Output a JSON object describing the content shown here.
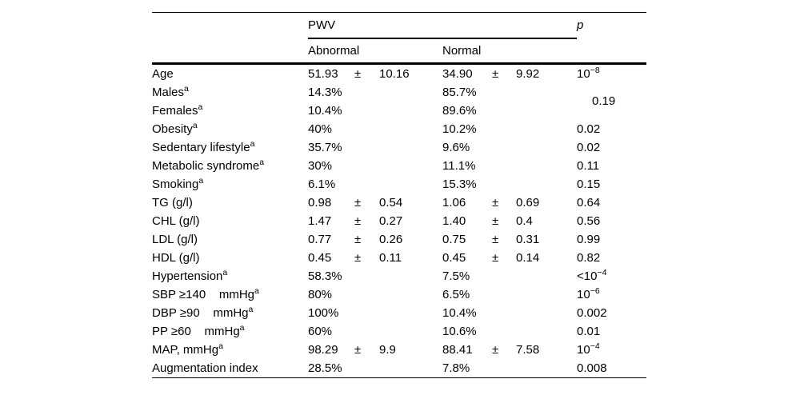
{
  "colors": {
    "background": "#ffffff",
    "text": "#000000",
    "rule": "#000000"
  },
  "table": {
    "header": {
      "group_title": "PWV",
      "subcol_abnormal": "Abnormal",
      "subcol_normal": "Normal",
      "p_label": "p"
    },
    "rows": [
      {
        "label": "Age",
        "abn": {
          "val": "51.93",
          "pm": "±",
          "sd": "10.16"
        },
        "norm": {
          "val": "34.90",
          "pm": "±",
          "sd": "9.92"
        },
        "p": {
          "text": "10",
          "sup": "−8"
        }
      },
      {
        "label": "Males",
        "sup": "a",
        "abn": {
          "val": "14.3%"
        },
        "norm": {
          "val": "85.7%"
        },
        "p": {
          "text": "0.19"
        },
        "p_rowspan": 2
      },
      {
        "label": "Females",
        "sup": "a",
        "abn": {
          "val": "10.4%"
        },
        "norm": {
          "val": "89.6%"
        },
        "p_skip": true
      },
      {
        "label": "Obesity",
        "sup": "a",
        "abn": {
          "val": "40%"
        },
        "norm": {
          "val": "10.2%"
        },
        "p": {
          "text": "0.02"
        }
      },
      {
        "label": "Sedentary lifestyle",
        "sup": "a",
        "abn": {
          "val": "35.7%"
        },
        "norm": {
          "val": "9.6%"
        },
        "p": {
          "text": "0.02"
        }
      },
      {
        "label": "Metabolic syndrome",
        "sup": "a",
        "abn": {
          "val": "30%"
        },
        "norm": {
          "val": "11.1%"
        },
        "p": {
          "text": "0.11"
        }
      },
      {
        "label": "Smoking",
        "sup": "a",
        "abn": {
          "val": "6.1%"
        },
        "norm": {
          "val": "15.3%"
        },
        "p": {
          "text": "0.15"
        }
      },
      {
        "label": "TG (g/l)",
        "abn": {
          "val": "0.98",
          "pm": "±",
          "sd": "0.54"
        },
        "norm": {
          "val": "1.06",
          "pm": "±",
          "sd": "0.69"
        },
        "p": {
          "text": "0.64"
        }
      },
      {
        "label": "CHL (g/l)",
        "abn": {
          "val": "1.47",
          "pm": "±",
          "sd": "0.27"
        },
        "norm": {
          "val": "1.40",
          "pm": "±",
          "sd": "0.4"
        },
        "p": {
          "text": "0.56"
        }
      },
      {
        "label": "LDL (g/l)",
        "abn": {
          "val": "0.77",
          "pm": "±",
          "sd": "0.26"
        },
        "norm": {
          "val": "0.75",
          "pm": "±",
          "sd": "0.31"
        },
        "p": {
          "text": "0.99"
        }
      },
      {
        "label": "HDL (g/l)",
        "abn": {
          "val": "0.45",
          "pm": "±",
          "sd": "0.11"
        },
        "norm": {
          "val": "0.45",
          "pm": "±",
          "sd": "0.14"
        },
        "p": {
          "text": "0.82"
        }
      },
      {
        "label": "Hypertension",
        "sup": "a",
        "abn": {
          "val": "58.3%"
        },
        "norm": {
          "val": "7.5%"
        },
        "p": {
          "text": "<10",
          "sup": "−4"
        }
      },
      {
        "label": "SBP ≥140    mmHg",
        "sup": "a",
        "abn": {
          "val": "80%"
        },
        "norm": {
          "val": "6.5%"
        },
        "p": {
          "text": "10",
          "sup": "−6"
        }
      },
      {
        "label": "DBP ≥90    mmHg",
        "sup": "a",
        "abn": {
          "val": "100%"
        },
        "norm": {
          "val": "10.4%"
        },
        "p": {
          "text": "0.002"
        }
      },
      {
        "label": "PP ≥60    mmHg",
        "sup": "a",
        "abn": {
          "val": "60%"
        },
        "norm": {
          "val": "10.6%"
        },
        "p": {
          "text": "0.01"
        }
      },
      {
        "label": "MAP, mmHg",
        "sup": "a",
        "abn": {
          "val": "98.29",
          "pm": "±",
          "sd": "9.9"
        },
        "norm": {
          "val": "88.41",
          "pm": "±",
          "sd": "7.58"
        },
        "p": {
          "text": "10",
          "sup": "−4"
        }
      },
      {
        "label": "Augmentation index",
        "abn": {
          "val": "28.5%"
        },
        "norm": {
          "val": "7.8%"
        },
        "p": {
          "text": "0.008"
        }
      }
    ]
  }
}
